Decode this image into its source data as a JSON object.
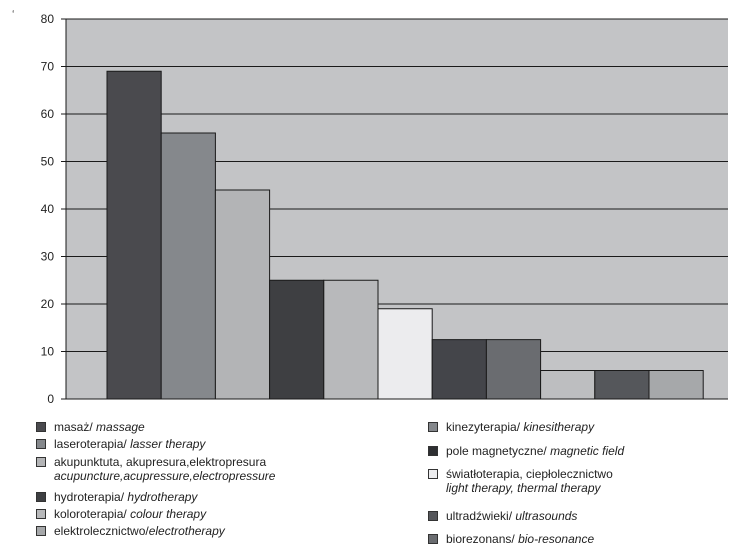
{
  "corner_mark": "ʻ",
  "chart_data": {
    "type": "bar",
    "ylim": [
      0,
      80
    ],
    "yticks": [
      0,
      10,
      20,
      30,
      40,
      50,
      60,
      70,
      80
    ],
    "grid": true,
    "bars": [
      {
        "value": 69,
        "color": "#4a4a4e"
      },
      {
        "value": 56,
        "color": "#85888c"
      },
      {
        "value": 44,
        "color": "#b3b4b6"
      },
      {
        "value": 25,
        "color": "#3e3f42"
      },
      {
        "value": 25,
        "color": "#b8b9bb"
      },
      {
        "value": 19,
        "color": "#ececee"
      },
      {
        "value": 12.5,
        "color": "#44454a"
      },
      {
        "value": 12.5,
        "color": "#6a6c70"
      },
      {
        "value": 6,
        "color": "#bdbec0"
      },
      {
        "value": 6,
        "color": "#55575b"
      },
      {
        "value": 6,
        "color": "#a6a8aa"
      }
    ],
    "legend": [
      {
        "pl": "masaż/",
        "en": "massage",
        "color": "#4a4a4e"
      },
      {
        "pl": "laseroterapia/",
        "en": "lasser therapy",
        "color": "#85888c"
      },
      {
        "pl": "akupunktuta, akupresura,elektropresura",
        "en": "acupuncture,acupressure,electropressure",
        "color": "#b3b4b6"
      },
      {
        "pl": "hydroterapia/",
        "en": "hydrotherapy",
        "color": "#3e3f42"
      },
      {
        "pl": "koloroterapia/",
        "en": "colour therapy",
        "color": "#b8b9bb"
      },
      {
        "pl": "elektrolecznictwo/",
        "en": "electrotherapy",
        "color": "#a6a8aa"
      },
      {
        "pl": "kinezyterapia/",
        "en": "kinesitherapy",
        "color": "#85888c"
      },
      {
        "pl": "pole magnetyczne/",
        "en": "magnetic field",
        "color": "#2e2f32"
      },
      {
        "pl": "światłoterapia, ciepłolecznictwo",
        "en": "light therapy,  thermal therapy",
        "color": "#ececee"
      },
      {
        "pl": "ultradźwieki/",
        "en": "ultrasounds",
        "color": "#55575b"
      },
      {
        "pl": "biorezonans/",
        "en": "bio-resonance",
        "color": "#6a6c70"
      }
    ]
  }
}
